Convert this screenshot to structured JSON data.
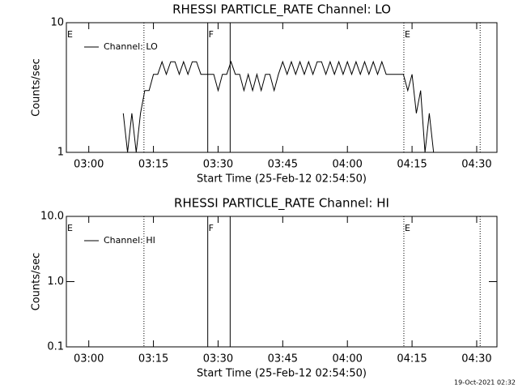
{
  "chart_data": [
    {
      "type": "line",
      "title": "RHESSI PARTICLE_RATE Channel: LO",
      "xlabel": "Start Time (25-Feb-12 02:54:50)",
      "ylabel": "Counts/sec",
      "log_y": true,
      "ylim": [
        1,
        10
      ],
      "yticks": [
        1,
        10
      ],
      "xlim": [
        -5.2,
        94.7
      ],
      "xticks": [
        {
          "value": 0,
          "label": "03:00"
        },
        {
          "value": 15,
          "label": "03:15"
        },
        {
          "value": 30,
          "label": "03:30"
        },
        {
          "value": 45,
          "label": "03:45"
        },
        {
          "value": 60,
          "label": "04:00"
        },
        {
          "value": 75,
          "label": "04:15"
        },
        {
          "value": 90,
          "label": "04:30"
        }
      ],
      "legend": "upper left",
      "vlines": [
        {
          "x": 12.8,
          "style": "dotted"
        },
        {
          "x": 27.6,
          "style": "solid"
        },
        {
          "x": 32.8,
          "style": "solid"
        },
        {
          "x": 73.1,
          "style": "dotted"
        },
        {
          "x": 90.8,
          "style": "dotted"
        }
      ],
      "flags": [
        {
          "x": -5.2,
          "text": "E"
        },
        {
          "x": 27.6,
          "text": "F"
        },
        {
          "x": 73.1,
          "text": "E"
        }
      ],
      "series": [
        {
          "name": "Channel: LO",
          "color": "#000000",
          "x": [
            8,
            9,
            10,
            11,
            12,
            13,
            14,
            15,
            16,
            17,
            18,
            19,
            20,
            21,
            22,
            23,
            24,
            25,
            26,
            27,
            28,
            29,
            30,
            31,
            32,
            33,
            34,
            35,
            36,
            37,
            38,
            39,
            40,
            41,
            42,
            43,
            44,
            45,
            46,
            47,
            48,
            49,
            50,
            51,
            52,
            53,
            54,
            55,
            56,
            57,
            58,
            59,
            60,
            61,
            62,
            63,
            64,
            65,
            66,
            67,
            68,
            69,
            70,
            71,
            72,
            73,
            74,
            75,
            76,
            77,
            78,
            79,
            80
          ],
          "values": [
            2,
            1,
            2,
            1,
            2,
            3,
            3,
            4,
            4,
            5,
            4,
            5,
            5,
            4,
            5,
            4,
            5,
            5,
            4,
            4,
            4,
            4,
            3,
            4,
            4,
            5,
            4,
            4,
            3,
            4,
            3,
            4,
            3,
            4,
            4,
            3,
            4,
            5,
            4,
            5,
            4,
            5,
            4,
            5,
            4,
            5,
            5,
            4,
            5,
            4,
            5,
            4,
            5,
            4,
            5,
            4,
            5,
            4,
            5,
            4,
            5,
            4,
            4,
            4,
            4,
            4,
            3,
            4,
            2,
            3,
            1,
            2,
            1
          ]
        }
      ]
    },
    {
      "type": "line",
      "title": "RHESSI PARTICLE_RATE Channel: HI",
      "xlabel": "Start Time (25-Feb-12 02:54:50)",
      "ylabel": "Counts/sec",
      "log_y": true,
      "ylim": [
        0.1,
        10
      ],
      "yticks": [
        {
          "value": 0.1,
          "label": "0.1"
        },
        {
          "value": 1,
          "label": "1.0"
        },
        {
          "value": 10,
          "label": "10.0"
        }
      ],
      "xlim": [
        -5.2,
        94.7
      ],
      "xticks": [
        {
          "value": 0,
          "label": "03:00"
        },
        {
          "value": 15,
          "label": "03:15"
        },
        {
          "value": 30,
          "label": "03:30"
        },
        {
          "value": 45,
          "label": "03:45"
        },
        {
          "value": 60,
          "label": "04:00"
        },
        {
          "value": 75,
          "label": "04:15"
        },
        {
          "value": 90,
          "label": "04:30"
        }
      ],
      "legend": "upper left",
      "vlines": [
        {
          "x": 12.8,
          "style": "dotted"
        },
        {
          "x": 27.6,
          "style": "solid"
        },
        {
          "x": 32.8,
          "style": "solid"
        },
        {
          "x": 73.1,
          "style": "dotted"
        },
        {
          "x": 90.8,
          "style": "dotted"
        }
      ],
      "flags": [
        {
          "x": -5.2,
          "text": "E"
        },
        {
          "x": 27.6,
          "text": "F"
        },
        {
          "x": 73.1,
          "text": "E"
        }
      ],
      "series": [
        {
          "name": "Channel: HI",
          "color": "#000000",
          "x": [],
          "values": []
        }
      ]
    }
  ],
  "footer": "19-Oct-2021 02:32"
}
